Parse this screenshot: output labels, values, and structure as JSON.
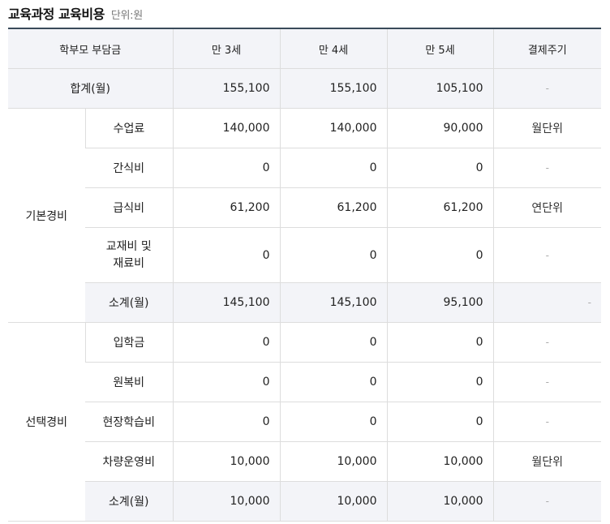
{
  "header": {
    "title": "교육과정 교육비용",
    "unit": "단위:원"
  },
  "table": {
    "columns": [
      "학부모 부담금",
      "만 3세",
      "만 4세",
      "만 5세",
      "결제주기"
    ],
    "total": {
      "label": "합계(월)",
      "values": [
        "155,100",
        "155,100",
        "105,100"
      ],
      "cycle": "-"
    },
    "basic": {
      "group": "기본경비",
      "rows": [
        {
          "label": "수업료",
          "values": [
            "140,000",
            "140,000",
            "90,000"
          ],
          "cycle": "월단위"
        },
        {
          "label": "간식비",
          "values": [
            "0",
            "0",
            "0"
          ],
          "cycle": "-"
        },
        {
          "label": "급식비",
          "values": [
            "61,200",
            "61,200",
            "61,200"
          ],
          "cycle": "연단위"
        },
        {
          "label": "교재비 및\n재료비",
          "values": [
            "0",
            "0",
            "0"
          ],
          "cycle": "-"
        }
      ],
      "subtotal": {
        "label": "소계(월)",
        "values": [
          "145,100",
          "145,100",
          "95,100"
        ],
        "cycle": "-"
      }
    },
    "optional": {
      "group": "선택경비",
      "rows": [
        {
          "label": "입학금",
          "values": [
            "0",
            "0",
            "0"
          ],
          "cycle": "-"
        },
        {
          "label": "원복비",
          "values": [
            "0",
            "0",
            "0"
          ],
          "cycle": "-"
        },
        {
          "label": "현장학습비",
          "values": [
            "0",
            "0",
            "0"
          ],
          "cycle": "-"
        },
        {
          "label": "차량운영비",
          "values": [
            "10,000",
            "10,000",
            "10,000"
          ],
          "cycle": "월단위"
        }
      ],
      "subtotal": {
        "label": "소계(월)",
        "values": [
          "10,000",
          "10,000",
          "10,000"
        ],
        "cycle": "-"
      }
    }
  }
}
